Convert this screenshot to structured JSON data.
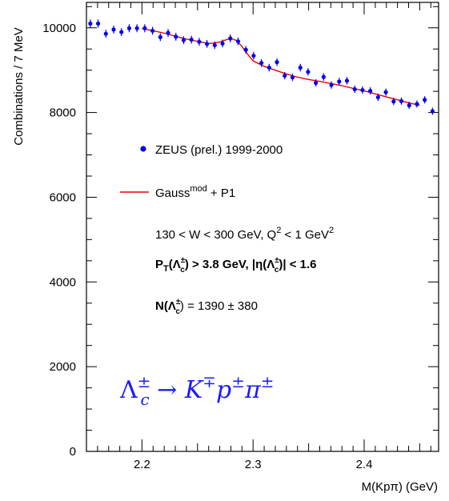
{
  "chart_data": {
    "type": "scatter",
    "xlabel": "M(Kpπ)  (GeV)",
    "ylabel": "Combinations / 7 MeV",
    "xlim": [
      2.15,
      2.467
    ],
    "ylim": [
      0,
      10600
    ],
    "x_ticks": [
      2.2,
      2.3,
      2.4
    ],
    "x_tick_labels": [
      "2.2",
      "2.3",
      "2.4"
    ],
    "y_ticks": [
      0,
      2000,
      4000,
      6000,
      8000,
      10000
    ],
    "y_tick_labels": [
      "0",
      "2000",
      "4000",
      "6000",
      "8000",
      "10000"
    ],
    "colors": {
      "points": "#0000ee",
      "fit": "#ee0000",
      "decay_text": "#1a1aff"
    },
    "series": [
      {
        "name": "ZEUS (prel.) 1999-2000",
        "kind": "points",
        "x": [
          2.1535,
          2.1605,
          2.1675,
          2.1745,
          2.1815,
          2.1885,
          2.1955,
          2.2025,
          2.2095,
          2.2165,
          2.2235,
          2.2305,
          2.2375,
          2.2445,
          2.2515,
          2.2585,
          2.2655,
          2.2725,
          2.2795,
          2.2865,
          2.2935,
          2.3005,
          2.3075,
          2.3145,
          2.3215,
          2.3285,
          2.3355,
          2.3425,
          2.3495,
          2.3565,
          2.3635,
          2.3705,
          2.3775,
          2.3845,
          2.3915,
          2.3985,
          2.4055,
          2.4125,
          2.4195,
          2.4265,
          2.4335,
          2.4405,
          2.4475,
          2.4545,
          2.4615,
          2.4685
        ],
        "y": [
          10100,
          10100,
          9860,
          9960,
          9900,
          9990,
          9990,
          9990,
          9930,
          9780,
          9880,
          9790,
          9710,
          9720,
          9670,
          9620,
          9590,
          9630,
          9750,
          9680,
          9480,
          9340,
          9170,
          9060,
          9190,
          8870,
          8830,
          9060,
          8960,
          8700,
          8840,
          8650,
          8730,
          8750,
          8550,
          8530,
          8510,
          8360,
          8480,
          8260,
          8270,
          8170,
          8200,
          8300,
          8030,
          8030
        ],
        "yerr": [
          95,
          95,
          94,
          94,
          94,
          94,
          94,
          94,
          94,
          93,
          93,
          93,
          93,
          93,
          93,
          92,
          92,
          92,
          93,
          92,
          91,
          91,
          90,
          90,
          90,
          88,
          88,
          90,
          89,
          88,
          88,
          87,
          88,
          88,
          87,
          87,
          86,
          86,
          86,
          85,
          85,
          85,
          85,
          86,
          84,
          84
        ]
      },
      {
        "name": "Gauss",
        "name_sup": "mod",
        "name_suffix": " + P1",
        "kind": "line",
        "x": [
          2.2,
          2.21,
          2.22,
          2.23,
          2.24,
          2.25,
          2.26,
          2.265,
          2.27,
          2.275,
          2.28,
          2.285,
          2.29,
          2.295,
          2.3,
          2.31,
          2.32,
          2.33,
          2.34,
          2.35,
          2.36,
          2.37,
          2.38,
          2.39,
          2.4,
          2.41,
          2.42,
          2.43,
          2.44,
          2.45
        ],
        "y": [
          9985,
          9930,
          9875,
          9800,
          9735,
          9680,
          9630,
          9640,
          9665,
          9710,
          9750,
          9700,
          9560,
          9380,
          9220,
          9090,
          9000,
          8910,
          8835,
          8780,
          8735,
          8685,
          8635,
          8570,
          8510,
          8440,
          8370,
          8300,
          8230,
          8170
        ]
      }
    ],
    "annotations": {
      "kinematics": [
        "130 < W < 300 GeV, Q",
        "2",
        " < 1 GeV",
        "2"
      ],
      "pt_cut": [
        "P",
        "T",
        "(Λ",
        "±",
        "c",
        ") > 3.8 GeV,  |η(Λ",
        "±",
        "c",
        ")| < 1.6"
      ],
      "yield": [
        "N(Λ",
        "±",
        "c",
        ") = 1390 ± 380"
      ],
      "decay": [
        "Λ",
        "±",
        "c",
        " → K",
        "∓",
        "p",
        "±",
        "π",
        "±"
      ]
    }
  }
}
